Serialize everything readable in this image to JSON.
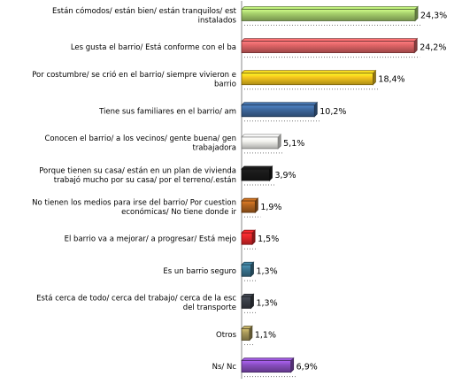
{
  "chart_data": {
    "type": "bar",
    "orientation": "horizontal",
    "categories": [
      [
        "Están cómodos/ están bien/ están tranquilos/ est",
        "instalados"
      ],
      [
        "Les gusta el barrio/ Está conforme con el ba"
      ],
      [
        "Por costumbre/ se crió en el barrio/ siempre vivieron e",
        "barrio"
      ],
      [
        "Tiene sus familiares en el barrio/ am"
      ],
      [
        "Conocen el barrio/ a los vecinos/ gente buena/ gen",
        "trabajadora"
      ],
      [
        "Porque tienen su casa/ están en un plan de vivienda",
        "trabajó mucho por su casa/ por el terreno/.están"
      ],
      [
        "No tienen los medios para irse del barrio/ Por cuestion",
        "económicas/ No tiene donde ir"
      ],
      [
        "El barrio va a mejorar/ a progresar/ Está mejo"
      ],
      [
        "Es un barrio seguro"
      ],
      [
        "Está cerca de todo/ cerca del trabajo/ cerca de la esc",
        "del transporte"
      ],
      [
        "Otros"
      ],
      [
        "Ns/ Nc"
      ]
    ],
    "values": [
      24.3,
      24.2,
      18.4,
      10.2,
      5.1,
      3.9,
      1.9,
      1.5,
      1.3,
      1.3,
      1.1,
      6.9
    ],
    "value_labels": [
      "24,3%",
      "24,2%",
      "18,4%",
      "10,2%",
      "5,1%",
      "3,9%",
      "1,9%",
      "1,5%",
      "1,3%",
      "1,3%",
      "1,1%",
      "6,9%"
    ],
    "colors": [
      "#a8d26e",
      "#e06466",
      "#f7c81e",
      "#3f6aa0",
      "#f4f4f0",
      "#1a1a1a",
      "#b5651e",
      "#e8262a",
      "#3c7894",
      "#3a3f48",
      "#aa9a5a",
      "#8a4fc2"
    ],
    "xlim": [
      0,
      24.3
    ],
    "grid": false,
    "legend": "none"
  }
}
